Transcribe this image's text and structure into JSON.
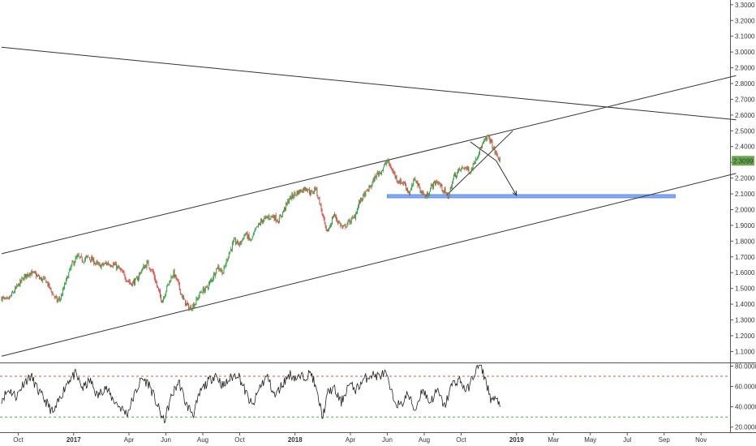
{
  "chart_data": {
    "type": "candlestick",
    "price_axis": {
      "ticks": [
        "3.3000",
        "3.2000",
        "3.1000",
        "3.0000",
        "2.9000",
        "2.8000",
        "2.7000",
        "2.6000",
        "2.5000",
        "2.4000",
        "2.3000",
        "2.2000",
        "2.1000",
        "2.0000",
        "1.9000",
        "1.8000",
        "1.7000",
        "1.6000",
        "1.5000",
        "1.4000",
        "1.3000",
        "1.2000",
        "1.1000"
      ],
      "ylim": [
        1.03,
        3.33
      ]
    },
    "last_price": {
      "label": "2.3099",
      "value": 2.3099,
      "color": "#6aa84f"
    },
    "time_axis": {
      "labels": [
        {
          "text": "Oct",
          "t": 0.0,
          "bold": false
        },
        {
          "text": "2017",
          "t": 3.0,
          "bold": true
        },
        {
          "text": "Apr",
          "t": 6.0,
          "bold": false
        },
        {
          "text": "Jun",
          "t": 8.0,
          "bold": false
        },
        {
          "text": "Aug",
          "t": 10.0,
          "bold": false
        },
        {
          "text": "Oct",
          "t": 12.0,
          "bold": false
        },
        {
          "text": "2018",
          "t": 15.0,
          "bold": true
        },
        {
          "text": "Apr",
          "t": 18.0,
          "bold": false
        },
        {
          "text": "Jun",
          "t": 20.0,
          "bold": false
        },
        {
          "text": "Aug",
          "t": 22.0,
          "bold": false
        },
        {
          "text": "Oct",
          "t": 24.0,
          "bold": false
        },
        {
          "text": "2019",
          "t": 27.0,
          "bold": true
        },
        {
          "text": "Mar",
          "t": 29.0,
          "bold": false
        },
        {
          "text": "May",
          "t": 31.0,
          "bold": false
        },
        {
          "text": "Jul",
          "t": 33.0,
          "bold": false
        },
        {
          "text": "Sep",
          "t": 35.0,
          "bold": false
        },
        {
          "text": "Nov",
          "t": 37.0,
          "bold": false
        }
      ]
    },
    "price_anchors": [
      [
        -0.9,
        1.44
      ],
      [
        -0.6,
        1.42
      ],
      [
        -0.3,
        1.47
      ],
      [
        0.0,
        1.52
      ],
      [
        0.3,
        1.57
      ],
      [
        0.6,
        1.6
      ],
      [
        0.9,
        1.59
      ],
      [
        1.2,
        1.56
      ],
      [
        1.5,
        1.55
      ],
      [
        1.8,
        1.48
      ],
      [
        2.1,
        1.42
      ],
      [
        2.3,
        1.44
      ],
      [
        2.6,
        1.55
      ],
      [
        2.9,
        1.65
      ],
      [
        3.2,
        1.7
      ],
      [
        3.5,
        1.68
      ],
      [
        3.8,
        1.7
      ],
      [
        4.1,
        1.67
      ],
      [
        4.4,
        1.64
      ],
      [
        4.8,
        1.66
      ],
      [
        5.2,
        1.65
      ],
      [
        5.5,
        1.62
      ],
      [
        5.8,
        1.57
      ],
      [
        6.1,
        1.53
      ],
      [
        6.4,
        1.55
      ],
      [
        6.7,
        1.62
      ],
      [
        7.0,
        1.66
      ],
      [
        7.3,
        1.6
      ],
      [
        7.6,
        1.48
      ],
      [
        7.8,
        1.42
      ],
      [
        8.1,
        1.52
      ],
      [
        8.4,
        1.6
      ],
      [
        8.6,
        1.55
      ],
      [
        8.9,
        1.44
      ],
      [
        9.1,
        1.4
      ],
      [
        9.3,
        1.37
      ],
      [
        9.6,
        1.41
      ],
      [
        9.9,
        1.48
      ],
      [
        10.2,
        1.5
      ],
      [
        10.5,
        1.56
      ],
      [
        10.8,
        1.64
      ],
      [
        11.1,
        1.6
      ],
      [
        11.4,
        1.72
      ],
      [
        11.7,
        1.8
      ],
      [
        12.0,
        1.78
      ],
      [
        12.3,
        1.85
      ],
      [
        12.6,
        1.8
      ],
      [
        12.9,
        1.88
      ],
      [
        13.2,
        1.93
      ],
      [
        13.5,
        1.95
      ],
      [
        13.8,
        1.96
      ],
      [
        14.1,
        1.93
      ],
      [
        14.4,
        2.0
      ],
      [
        14.7,
        2.07
      ],
      [
        15.0,
        2.1
      ],
      [
        15.3,
        2.12
      ],
      [
        15.6,
        2.14
      ],
      [
        15.9,
        2.1
      ],
      [
        16.1,
        2.14
      ],
      [
        16.3,
        2.06
      ],
      [
        16.5,
        1.96
      ],
      [
        16.7,
        1.85
      ],
      [
        16.9,
        1.9
      ],
      [
        17.1,
        1.97
      ],
      [
        17.3,
        1.93
      ],
      [
        17.6,
        1.88
      ],
      [
        17.9,
        1.92
      ],
      [
        18.2,
        1.95
      ],
      [
        18.5,
        2.05
      ],
      [
        18.8,
        2.1
      ],
      [
        19.1,
        2.15
      ],
      [
        19.4,
        2.22
      ],
      [
        19.7,
        2.25
      ],
      [
        20.0,
        2.31
      ],
      [
        20.3,
        2.24
      ],
      [
        20.6,
        2.18
      ],
      [
        20.9,
        2.17
      ],
      [
        21.2,
        2.1
      ],
      [
        21.5,
        2.2
      ],
      [
        21.8,
        2.12
      ],
      [
        22.1,
        2.08
      ],
      [
        22.4,
        2.15
      ],
      [
        22.7,
        2.18
      ],
      [
        23.0,
        2.13
      ],
      [
        23.3,
        2.08
      ],
      [
        23.6,
        2.21
      ],
      [
        23.9,
        2.25
      ],
      [
        24.2,
        2.27
      ],
      [
        24.5,
        2.24
      ],
      [
        24.8,
        2.33
      ],
      [
        25.1,
        2.4
      ],
      [
        25.3,
        2.44
      ],
      [
        25.5,
        2.46
      ],
      [
        25.7,
        2.4
      ],
      [
        25.9,
        2.35
      ],
      [
        26.1,
        2.31
      ]
    ],
    "rsi": {
      "ticks": [
        "80.0000",
        "60.0000",
        "40.0000",
        "20.0000"
      ],
      "ylim": [
        15,
        82
      ],
      "overbought": 70,
      "oversold": 30,
      "anchors": [
        [
          -0.9,
          48
        ],
        [
          -0.5,
          57
        ],
        [
          -0.1,
          50
        ],
        [
          0.3,
          64
        ],
        [
          0.7,
          70
        ],
        [
          1.1,
          55
        ],
        [
          1.5,
          45
        ],
        [
          1.9,
          33
        ],
        [
          2.3,
          50
        ],
        [
          2.7,
          66
        ],
        [
          3.1,
          72
        ],
        [
          3.5,
          58
        ],
        [
          3.9,
          66
        ],
        [
          4.3,
          50
        ],
        [
          4.7,
          60
        ],
        [
          5.1,
          48
        ],
        [
          5.5,
          40
        ],
        [
          5.9,
          33
        ],
        [
          6.3,
          52
        ],
        [
          6.7,
          68
        ],
        [
          7.1,
          62
        ],
        [
          7.5,
          43
        ],
        [
          7.9,
          25
        ],
        [
          8.3,
          50
        ],
        [
          8.7,
          65
        ],
        [
          9.1,
          42
        ],
        [
          9.5,
          33
        ],
        [
          9.9,
          56
        ],
        [
          10.3,
          65
        ],
        [
          10.7,
          72
        ],
        [
          11.1,
          60
        ],
        [
          11.5,
          68
        ],
        [
          11.9,
          73
        ],
        [
          12.3,
          55
        ],
        [
          12.7,
          40
        ],
        [
          13.1,
          60
        ],
        [
          13.5,
          70
        ],
        [
          13.9,
          50
        ],
        [
          14.3,
          62
        ],
        [
          14.7,
          72
        ],
        [
          15.1,
          68
        ],
        [
          15.5,
          70
        ],
        [
          15.9,
          73
        ],
        [
          16.3,
          45
        ],
        [
          16.5,
          30
        ],
        [
          16.8,
          55
        ],
        [
          17.1,
          58
        ],
        [
          17.5,
          44
        ],
        [
          17.9,
          62
        ],
        [
          18.3,
          57
        ],
        [
          18.7,
          66
        ],
        [
          19.1,
          72
        ],
        [
          19.5,
          70
        ],
        [
          19.9,
          73
        ],
        [
          20.3,
          49
        ],
        [
          20.7,
          40
        ],
        [
          21.1,
          53
        ],
        [
          21.5,
          36
        ],
        [
          21.9,
          58
        ],
        [
          22.3,
          44
        ],
        [
          22.7,
          56
        ],
        [
          23.1,
          40
        ],
        [
          23.5,
          62
        ],
        [
          23.9,
          67
        ],
        [
          24.3,
          55
        ],
        [
          24.7,
          72
        ],
        [
          25.0,
          82
        ],
        [
          25.3,
          68
        ],
        [
          25.6,
          48
        ],
        [
          25.9,
          46
        ],
        [
          26.1,
          44
        ]
      ]
    },
    "annotations": {
      "trendlines": [
        {
          "from": [
            -0.9,
            1.72
          ],
          "to": [
            38.9,
            2.85
          ]
        },
        {
          "from": [
            -0.9,
            1.07
          ],
          "to": [
            38.9,
            2.23
          ]
        },
        {
          "from": [
            -0.9,
            3.03
          ],
          "to": [
            38.9,
            2.57
          ]
        },
        {
          "from": [
            23.2,
            2.09
          ],
          "to": [
            26.8,
            2.5
          ]
        }
      ],
      "arrows": [
        {
          "from": [
            24.5,
            2.43
          ],
          "to": [
            25.9,
            2.31
          ]
        },
        {
          "from": [
            25.9,
            2.31
          ],
          "to": [
            27.0,
            2.09
          ]
        }
      ],
      "support_zone": {
        "t_start": 20.0,
        "t_end": 35.6,
        "y_low": 2.075,
        "y_high": 2.095,
        "color": "#5b8def"
      }
    }
  }
}
